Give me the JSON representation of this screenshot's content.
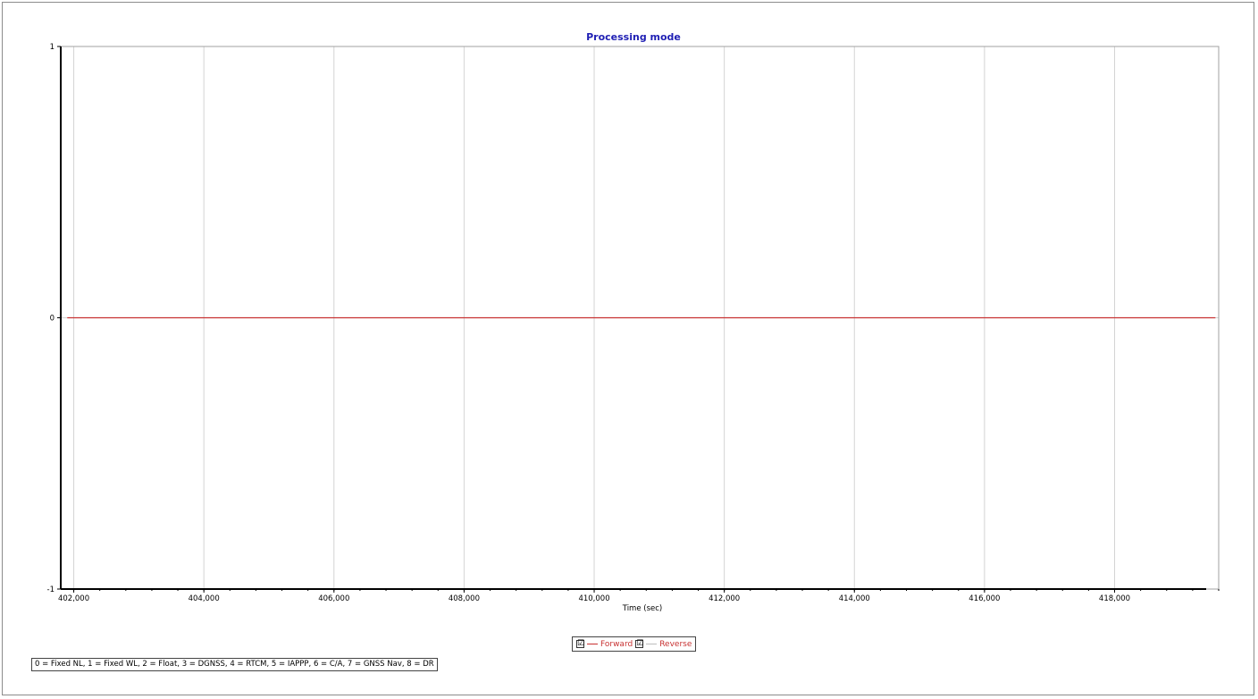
{
  "chart_data": {
    "type": "line",
    "title": "Processing mode",
    "xlabel": "Time (sec)",
    "ylabel": "",
    "xlim": [
      401800,
      419600
    ],
    "ylim": [
      -1,
      1
    ],
    "x_ticks": [
      402000,
      404000,
      406000,
      408000,
      410000,
      412000,
      414000,
      416000,
      418000
    ],
    "x_tick_labels": [
      "402,000",
      "404,000",
      "406,000",
      "408,000",
      "410,000",
      "412,000",
      "414,000",
      "416,000",
      "418,000"
    ],
    "y_ticks": [
      1,
      0,
      -1
    ],
    "y_tick_labels": [
      "1",
      "0",
      "-1"
    ],
    "grid": "vertical",
    "series": [
      {
        "name": "Forward",
        "color": "#c83232",
        "x": [
          401900,
          419550
        ],
        "values": [
          0,
          0
        ]
      },
      {
        "name": "Reverse",
        "color": "#bdbdbd",
        "x": [],
        "values": []
      }
    ]
  },
  "colors": {
    "title": "#1f1fb4",
    "grid": "#d4d4d4",
    "forward_legend_text": "#c83232",
    "reverse_legend_text": "#c83232"
  },
  "legend": {
    "items": [
      {
        "label": "Forward",
        "checked": "☑"
      },
      {
        "label": "Reverse",
        "checked": "☑"
      }
    ]
  },
  "footnote": "0 = Fixed NL, 1 = Fixed WL, 2 = Float, 3 = DGNSS, 4 = RTCM, 5 = IAPPP, 6 = C/A, 7 = GNSS Nav, 8 = DR"
}
